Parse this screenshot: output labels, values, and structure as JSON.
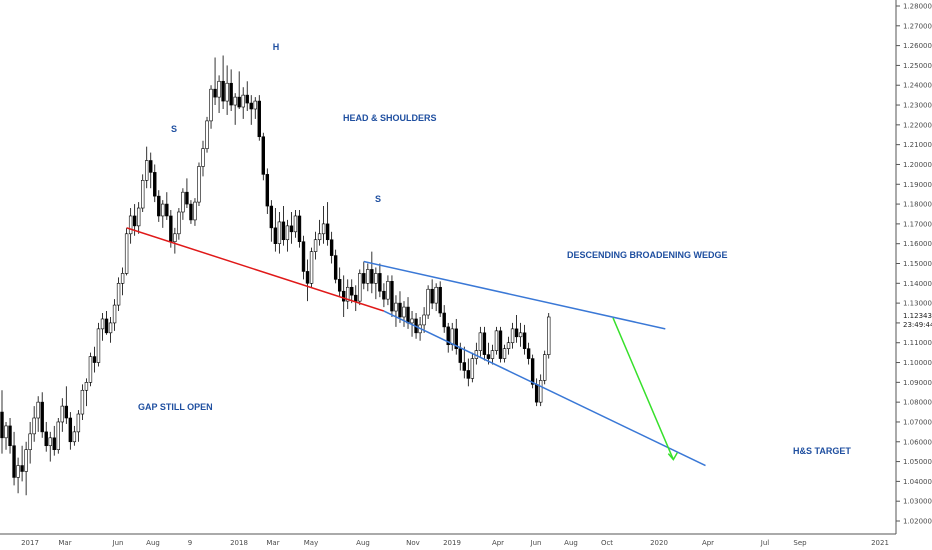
{
  "chart_data": {
    "type": "candlestick",
    "title": "",
    "xlabel": "",
    "ylabel": "",
    "ylim": [
      1.01,
      1.29
    ],
    "y_ticks": [
      "1.28000",
      "1.27000",
      "1.26000",
      "1.25000",
      "1.24000",
      "1.23000",
      "1.22000",
      "1.21000",
      "1.20000",
      "1.19000",
      "1.18000",
      "1.17000",
      "1.16000",
      "1.15000",
      "1.14000",
      "1.13000",
      "1.12000",
      "1.11000",
      "1.10000",
      "1.09000",
      "1.08000",
      "1.07000",
      "1.06000",
      "1.05000",
      "1.04000",
      "1.03000",
      "1.02000"
    ],
    "x_ticks": [
      "2017",
      "Mar",
      "Jun",
      "Aug",
      "9",
      "2018",
      "Mar",
      "May",
      "Aug",
      "Nov",
      "2019",
      "Apr",
      "Jun",
      "Aug",
      "Oct",
      "2020",
      "Apr",
      "Jul",
      "Sep",
      "2021"
    ],
    "current_price": "1.12343",
    "countdown": "23:49:44",
    "candles": [
      {
        "o": 1.075,
        "h": 1.086,
        "l": 1.054,
        "c": 1.062
      },
      {
        "o": 1.062,
        "h": 1.07,
        "l": 1.056,
        "c": 1.068
      },
      {
        "o": 1.068,
        "h": 1.072,
        "l": 1.054,
        "c": 1.058
      },
      {
        "o": 1.058,
        "h": 1.065,
        "l": 1.038,
        "c": 1.042
      },
      {
        "o": 1.042,
        "h": 1.052,
        "l": 1.034,
        "c": 1.048
      },
      {
        "o": 1.048,
        "h": 1.058,
        "l": 1.04,
        "c": 1.045
      },
      {
        "o": 1.045,
        "h": 1.06,
        "l": 1.033,
        "c": 1.056
      },
      {
        "o": 1.056,
        "h": 1.07,
        "l": 1.049,
        "c": 1.064
      },
      {
        "o": 1.064,
        "h": 1.078,
        "l": 1.06,
        "c": 1.072
      },
      {
        "o": 1.072,
        "h": 1.083,
        "l": 1.065,
        "c": 1.08
      },
      {
        "o": 1.08,
        "h": 1.085,
        "l": 1.062,
        "c": 1.065
      },
      {
        "o": 1.065,
        "h": 1.07,
        "l": 1.055,
        "c": 1.058
      },
      {
        "o": 1.058,
        "h": 1.065,
        "l": 1.05,
        "c": 1.062
      },
      {
        "o": 1.062,
        "h": 1.068,
        "l": 1.053,
        "c": 1.056
      },
      {
        "o": 1.056,
        "h": 1.072,
        "l": 1.054,
        "c": 1.07
      },
      {
        "o": 1.07,
        "h": 1.082,
        "l": 1.065,
        "c": 1.078
      },
      {
        "o": 1.078,
        "h": 1.088,
        "l": 1.069,
        "c": 1.072
      },
      {
        "o": 1.072,
        "h": 1.075,
        "l": 1.056,
        "c": 1.06
      },
      {
        "o": 1.06,
        "h": 1.068,
        "l": 1.058,
        "c": 1.065
      },
      {
        "o": 1.065,
        "h": 1.076,
        "l": 1.06,
        "c": 1.074
      },
      {
        "o": 1.074,
        "h": 1.089,
        "l": 1.071,
        "c": 1.086
      },
      {
        "o": 1.086,
        "h": 1.092,
        "l": 1.078,
        "c": 1.09
      },
      {
        "o": 1.09,
        "h": 1.105,
        "l": 1.088,
        "c": 1.103
      },
      {
        "o": 1.103,
        "h": 1.108,
        "l": 1.095,
        "c": 1.1
      },
      {
        "o": 1.1,
        "h": 1.12,
        "l": 1.098,
        "c": 1.117
      },
      {
        "o": 1.117,
        "h": 1.125,
        "l": 1.111,
        "c": 1.122
      },
      {
        "o": 1.122,
        "h": 1.126,
        "l": 1.114,
        "c": 1.115
      },
      {
        "o": 1.115,
        "h": 1.123,
        "l": 1.11,
        "c": 1.12
      },
      {
        "o": 1.12,
        "h": 1.132,
        "l": 1.116,
        "c": 1.129
      },
      {
        "o": 1.129,
        "h": 1.143,
        "l": 1.126,
        "c": 1.14
      },
      {
        "o": 1.14,
        "h": 1.148,
        "l": 1.134,
        "c": 1.145
      },
      {
        "o": 1.145,
        "h": 1.168,
        "l": 1.144,
        "c": 1.165
      },
      {
        "o": 1.165,
        "h": 1.178,
        "l": 1.16,
        "c": 1.174
      },
      {
        "o": 1.174,
        "h": 1.18,
        "l": 1.164,
        "c": 1.169
      },
      {
        "o": 1.169,
        "h": 1.181,
        "l": 1.165,
        "c": 1.178
      },
      {
        "o": 1.178,
        "h": 1.195,
        "l": 1.176,
        "c": 1.192
      },
      {
        "o": 1.192,
        "h": 1.209,
        "l": 1.188,
        "c": 1.202
      },
      {
        "o": 1.202,
        "h": 1.206,
        "l": 1.188,
        "c": 1.196
      },
      {
        "o": 1.196,
        "h": 1.2,
        "l": 1.181,
        "c": 1.184
      },
      {
        "o": 1.184,
        "h": 1.187,
        "l": 1.171,
        "c": 1.174
      },
      {
        "o": 1.174,
        "h": 1.182,
        "l": 1.168,
        "c": 1.18
      },
      {
        "o": 1.18,
        "h": 1.186,
        "l": 1.172,
        "c": 1.174
      },
      {
        "o": 1.174,
        "h": 1.177,
        "l": 1.158,
        "c": 1.161
      },
      {
        "o": 1.161,
        "h": 1.168,
        "l": 1.155,
        "c": 1.165
      },
      {
        "o": 1.165,
        "h": 1.178,
        "l": 1.162,
        "c": 1.176
      },
      {
        "o": 1.176,
        "h": 1.188,
        "l": 1.172,
        "c": 1.186
      },
      {
        "o": 1.186,
        "h": 1.193,
        "l": 1.178,
        "c": 1.18
      },
      {
        "o": 1.18,
        "h": 1.182,
        "l": 1.17,
        "c": 1.172
      },
      {
        "o": 1.172,
        "h": 1.183,
        "l": 1.169,
        "c": 1.181
      },
      {
        "o": 1.181,
        "h": 1.201,
        "l": 1.179,
        "c": 1.199
      },
      {
        "o": 1.199,
        "h": 1.212,
        "l": 1.194,
        "c": 1.208
      },
      {
        "o": 1.208,
        "h": 1.224,
        "l": 1.206,
        "c": 1.222
      },
      {
        "o": 1.222,
        "h": 1.24,
        "l": 1.218,
        "c": 1.238
      },
      {
        "o": 1.238,
        "h": 1.254,
        "l": 1.23,
        "c": 1.234
      },
      {
        "o": 1.234,
        "h": 1.245,
        "l": 1.226,
        "c": 1.242
      },
      {
        "o": 1.242,
        "h": 1.255,
        "l": 1.228,
        "c": 1.232
      },
      {
        "o": 1.232,
        "h": 1.25,
        "l": 1.225,
        "c": 1.241
      },
      {
        "o": 1.241,
        "h": 1.248,
        "l": 1.227,
        "c": 1.23
      },
      {
        "o": 1.23,
        "h": 1.236,
        "l": 1.22,
        "c": 1.234
      },
      {
        "o": 1.234,
        "h": 1.247,
        "l": 1.228,
        "c": 1.229
      },
      {
        "o": 1.229,
        "h": 1.239,
        "l": 1.223,
        "c": 1.235
      },
      {
        "o": 1.235,
        "h": 1.242,
        "l": 1.227,
        "c": 1.231
      },
      {
        "o": 1.231,
        "h": 1.235,
        "l": 1.22,
        "c": 1.228
      },
      {
        "o": 1.228,
        "h": 1.234,
        "l": 1.223,
        "c": 1.232
      },
      {
        "o": 1.232,
        "h": 1.235,
        "l": 1.212,
        "c": 1.214
      },
      {
        "o": 1.214,
        "h": 1.216,
        "l": 1.192,
        "c": 1.195
      },
      {
        "o": 1.195,
        "h": 1.198,
        "l": 1.175,
        "c": 1.179
      },
      {
        "o": 1.179,
        "h": 1.182,
        "l": 1.161,
        "c": 1.168
      },
      {
        "o": 1.168,
        "h": 1.178,
        "l": 1.156,
        "c": 1.16
      },
      {
        "o": 1.16,
        "h": 1.176,
        "l": 1.155,
        "c": 1.171
      },
      {
        "o": 1.171,
        "h": 1.179,
        "l": 1.159,
        "c": 1.162
      },
      {
        "o": 1.162,
        "h": 1.172,
        "l": 1.156,
        "c": 1.169
      },
      {
        "o": 1.169,
        "h": 1.176,
        "l": 1.16,
        "c": 1.166
      },
      {
        "o": 1.166,
        "h": 1.177,
        "l": 1.163,
        "c": 1.174
      },
      {
        "o": 1.174,
        "h": 1.177,
        "l": 1.158,
        "c": 1.161
      },
      {
        "o": 1.161,
        "h": 1.164,
        "l": 1.142,
        "c": 1.146
      },
      {
        "o": 1.146,
        "h": 1.152,
        "l": 1.131,
        "c": 1.14
      },
      {
        "o": 1.14,
        "h": 1.158,
        "l": 1.138,
        "c": 1.156
      },
      {
        "o": 1.156,
        "h": 1.166,
        "l": 1.152,
        "c": 1.162
      },
      {
        "o": 1.162,
        "h": 1.172,
        "l": 1.159,
        "c": 1.165
      },
      {
        "o": 1.165,
        "h": 1.179,
        "l": 1.16,
        "c": 1.17
      },
      {
        "o": 1.17,
        "h": 1.181,
        "l": 1.159,
        "c": 1.162
      },
      {
        "o": 1.162,
        "h": 1.166,
        "l": 1.15,
        "c": 1.154
      },
      {
        "o": 1.154,
        "h": 1.157,
        "l": 1.14,
        "c": 1.142
      },
      {
        "o": 1.142,
        "h": 1.148,
        "l": 1.133,
        "c": 1.136
      },
      {
        "o": 1.136,
        "h": 1.144,
        "l": 1.123,
        "c": 1.131
      },
      {
        "o": 1.131,
        "h": 1.142,
        "l": 1.127,
        "c": 1.138
      },
      {
        "o": 1.138,
        "h": 1.142,
        "l": 1.13,
        "c": 1.134
      },
      {
        "o": 1.134,
        "h": 1.139,
        "l": 1.126,
        "c": 1.131
      },
      {
        "o": 1.131,
        "h": 1.147,
        "l": 1.129,
        "c": 1.145
      },
      {
        "o": 1.145,
        "h": 1.151,
        "l": 1.137,
        "c": 1.14
      },
      {
        "o": 1.14,
        "h": 1.15,
        "l": 1.136,
        "c": 1.147
      },
      {
        "o": 1.147,
        "h": 1.156,
        "l": 1.135,
        "c": 1.14
      },
      {
        "o": 1.14,
        "h": 1.148,
        "l": 1.132,
        "c": 1.145
      },
      {
        "o": 1.145,
        "h": 1.15,
        "l": 1.133,
        "c": 1.136
      },
      {
        "o": 1.136,
        "h": 1.14,
        "l": 1.128,
        "c": 1.132
      },
      {
        "o": 1.132,
        "h": 1.144,
        "l": 1.129,
        "c": 1.141
      },
      {
        "o": 1.141,
        "h": 1.144,
        "l": 1.123,
        "c": 1.126
      },
      {
        "o": 1.126,
        "h": 1.134,
        "l": 1.118,
        "c": 1.13
      },
      {
        "o": 1.13,
        "h": 1.136,
        "l": 1.12,
        "c": 1.123
      },
      {
        "o": 1.123,
        "h": 1.131,
        "l": 1.118,
        "c": 1.128
      },
      {
        "o": 1.128,
        "h": 1.133,
        "l": 1.117,
        "c": 1.12
      },
      {
        "o": 1.12,
        "h": 1.126,
        "l": 1.113,
        "c": 1.122
      },
      {
        "o": 1.122,
        "h": 1.125,
        "l": 1.112,
        "c": 1.115
      },
      {
        "o": 1.115,
        "h": 1.123,
        "l": 1.111,
        "c": 1.119
      },
      {
        "o": 1.119,
        "h": 1.128,
        "l": 1.115,
        "c": 1.124
      },
      {
        "o": 1.124,
        "h": 1.139,
        "l": 1.122,
        "c": 1.137
      },
      {
        "o": 1.137,
        "h": 1.142,
        "l": 1.127,
        "c": 1.13
      },
      {
        "o": 1.13,
        "h": 1.14,
        "l": 1.126,
        "c": 1.138
      },
      {
        "o": 1.138,
        "h": 1.141,
        "l": 1.123,
        "c": 1.125
      },
      {
        "o": 1.125,
        "h": 1.129,
        "l": 1.115,
        "c": 1.118
      },
      {
        "o": 1.118,
        "h": 1.12,
        "l": 1.105,
        "c": 1.109
      },
      {
        "o": 1.109,
        "h": 1.12,
        "l": 1.106,
        "c": 1.117
      },
      {
        "o": 1.117,
        "h": 1.122,
        "l": 1.104,
        "c": 1.107
      },
      {
        "o": 1.107,
        "h": 1.11,
        "l": 1.096,
        "c": 1.1
      },
      {
        "o": 1.1,
        "h": 1.108,
        "l": 1.092,
        "c": 1.096
      },
      {
        "o": 1.096,
        "h": 1.102,
        "l": 1.088,
        "c": 1.092
      },
      {
        "o": 1.092,
        "h": 1.105,
        "l": 1.09,
        "c": 1.102
      },
      {
        "o": 1.102,
        "h": 1.11,
        "l": 1.099,
        "c": 1.106
      },
      {
        "o": 1.106,
        "h": 1.118,
        "l": 1.103,
        "c": 1.115
      },
      {
        "o": 1.115,
        "h": 1.118,
        "l": 1.101,
        "c": 1.104
      },
      {
        "o": 1.104,
        "h": 1.11,
        "l": 1.099,
        "c": 1.102
      },
      {
        "o": 1.102,
        "h": 1.109,
        "l": 1.099,
        "c": 1.106
      },
      {
        "o": 1.106,
        "h": 1.118,
        "l": 1.104,
        "c": 1.116
      },
      {
        "o": 1.116,
        "h": 1.118,
        "l": 1.1,
        "c": 1.102
      },
      {
        "o": 1.102,
        "h": 1.109,
        "l": 1.1,
        "c": 1.107
      },
      {
        "o": 1.107,
        "h": 1.113,
        "l": 1.104,
        "c": 1.11
      },
      {
        "o": 1.11,
        "h": 1.12,
        "l": 1.107,
        "c": 1.117
      },
      {
        "o": 1.117,
        "h": 1.124,
        "l": 1.11,
        "c": 1.113
      },
      {
        "o": 1.113,
        "h": 1.12,
        "l": 1.108,
        "c": 1.115
      },
      {
        "o": 1.115,
        "h": 1.119,
        "l": 1.104,
        "c": 1.107
      },
      {
        "o": 1.107,
        "h": 1.11,
        "l": 1.099,
        "c": 1.102
      },
      {
        "o": 1.102,
        "h": 1.104,
        "l": 1.087,
        "c": 1.089
      },
      {
        "o": 1.089,
        "h": 1.092,
        "l": 1.078,
        "c": 1.08
      },
      {
        "o": 1.08,
        "h": 1.094,
        "l": 1.078,
        "c": 1.091
      },
      {
        "o": 1.091,
        "h": 1.106,
        "l": 1.089,
        "c": 1.104
      },
      {
        "o": 1.104,
        "h": 1.125,
        "l": 1.102,
        "c": 1.123
      }
    ],
    "annotations": {
      "left_shoulder": "S",
      "head": "H",
      "right_shoulder": "S",
      "pattern": "HEAD & SHOULDERS",
      "wedge": "DESCENDING BROADENING WEDGE",
      "gap": "GAP STILL OPEN",
      "target": "H&S TARGET"
    },
    "lines": [
      {
        "name": "neckline",
        "color": "#e01919",
        "from": {
          "i": 31,
          "y": 1.168
        },
        "to": {
          "i": 95,
          "y": 1.126
        }
      },
      {
        "name": "wedge-upper",
        "color": "#3a78d6",
        "from": {
          "i": 90,
          "y": 1.151
        },
        "to": {
          "i": 165,
          "y": 1.117
        }
      },
      {
        "name": "wedge-lower",
        "color": "#3a78d6",
        "from": {
          "i": 95,
          "y": 1.126
        },
        "to": {
          "i": 175,
          "y": 1.048
        }
      },
      {
        "name": "projection",
        "color": "#37e02b",
        "from": {
          "i": 152,
          "y": 1.1225
        },
        "to": {
          "i": 167,
          "y": 1.051
        }
      }
    ]
  }
}
